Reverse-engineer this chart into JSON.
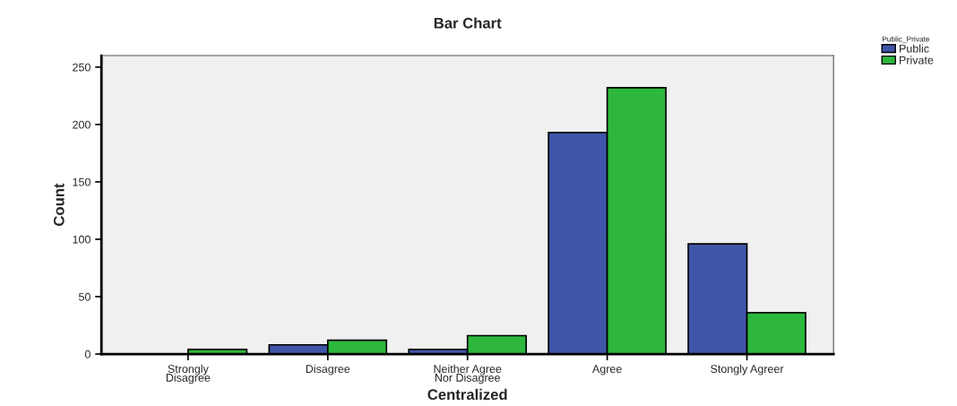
{
  "chart_data": {
    "type": "bar",
    "title": "Bar Chart",
    "xlabel": "Centralized",
    "ylabel": "Count",
    "categories": [
      "Strongly\nDisagree",
      "Disagree",
      "Neither Agree\nNor Disagree",
      "Agree",
      "Stongly Agreer"
    ],
    "series": [
      {
        "name": "Public",
        "color": "#3f55a8",
        "values": [
          null,
          8,
          4,
          193,
          96
        ]
      },
      {
        "name": "Private",
        "color": "#2db83d",
        "values": [
          4,
          12,
          16,
          232,
          36
        ]
      }
    ],
    "legend_title": "Public_Private",
    "legend": "top right",
    "ylim": [
      0,
      260
    ],
    "yticks": [
      0,
      50,
      100,
      150,
      200,
      250
    ],
    "grid": false
  }
}
